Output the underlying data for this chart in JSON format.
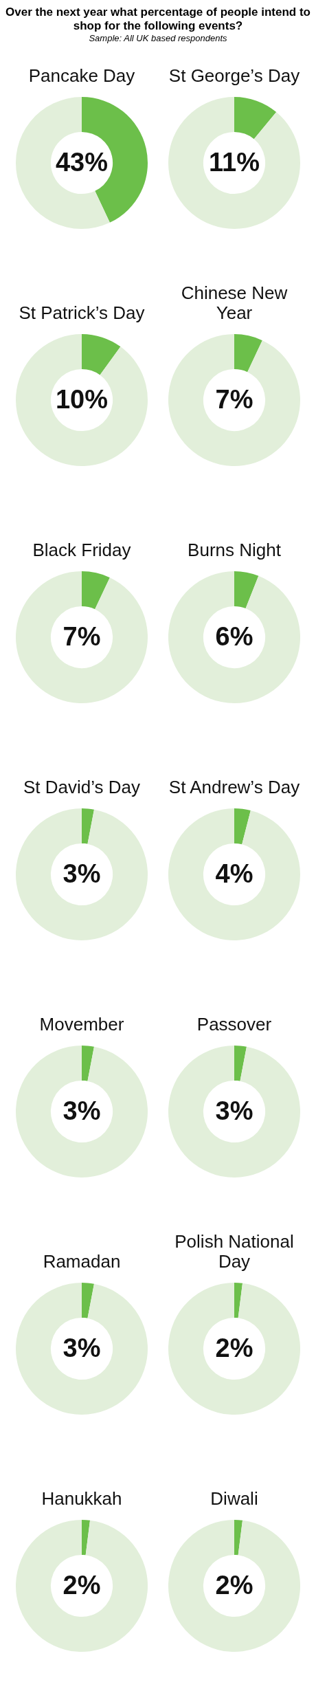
{
  "chart_data": [
    {
      "type": "other",
      "title": "Over the next year what percentage of people intend to shop for the following events?",
      "subtitle": "Sample: All UK based respondents"
    },
    {
      "type": "donut",
      "title": "Pancake Day",
      "categories": [
        null,
        null
      ],
      "values": [
        43,
        57
      ],
      "colors": [
        "#6cbf4a",
        "#e2efda"
      ],
      "value_labels": [
        "43%",
        null
      ]
    },
    {
      "type": "donut",
      "title": "St George’s Day",
      "categories": [
        null,
        null
      ],
      "values": [
        11,
        89
      ],
      "colors": [
        "#6cbf4a",
        "#e2efda"
      ],
      "value_labels": [
        "11%",
        null
      ]
    },
    {
      "type": "donut",
      "title": "St Patrick’s Day",
      "categories": [
        null,
        null
      ],
      "values": [
        10,
        90
      ],
      "colors": [
        "#6cbf4a",
        "#e2efda"
      ],
      "value_labels": [
        "10%",
        null
      ]
    },
    {
      "type": "donut",
      "title": "Chinese New Year",
      "categories": [
        null,
        null
      ],
      "values": [
        7,
        93
      ],
      "colors": [
        "#6cbf4a",
        "#e2efda"
      ],
      "value_labels": [
        "7%",
        null
      ]
    },
    {
      "type": "donut",
      "title": "Black Friday",
      "categories": [
        null,
        null
      ],
      "values": [
        7,
        93
      ],
      "colors": [
        "#6cbf4a",
        "#e2efda"
      ],
      "value_labels": [
        "7%",
        null
      ]
    },
    {
      "type": "donut",
      "title": "Burns Night",
      "categories": [
        null,
        null
      ],
      "values": [
        6,
        94
      ],
      "colors": [
        "#6cbf4a",
        "#e2efda"
      ],
      "value_labels": [
        "6%",
        null
      ]
    },
    {
      "type": "donut",
      "title": "St David’s Day",
      "categories": [
        null,
        null
      ],
      "values": [
        3,
        97
      ],
      "colors": [
        "#6cbf4a",
        "#e2efda"
      ],
      "value_labels": [
        "3%",
        null
      ]
    },
    {
      "type": "donut",
      "title": "St Andrew’s Day",
      "categories": [
        null,
        null
      ],
      "values": [
        4,
        96
      ],
      "colors": [
        "#6cbf4a",
        "#e2efda"
      ],
      "value_labels": [
        "4%",
        null
      ]
    },
    {
      "type": "donut",
      "title": "Movember",
      "categories": [
        null,
        null
      ],
      "values": [
        3,
        97
      ],
      "colors": [
        "#6cbf4a",
        "#e2efda"
      ],
      "value_labels": [
        "3%",
        null
      ]
    },
    {
      "type": "donut",
      "title": "Passover",
      "categories": [
        null,
        null
      ],
      "values": [
        3,
        97
      ],
      "colors": [
        "#6cbf4a",
        "#e2efda"
      ],
      "value_labels": [
        "3%",
        null
      ]
    },
    {
      "type": "donut",
      "title": "Ramadan",
      "categories": [
        null,
        null
      ],
      "values": [
        3,
        97
      ],
      "colors": [
        "#6cbf4a",
        "#e2efda"
      ],
      "value_labels": [
        "3%",
        null
      ]
    },
    {
      "type": "donut",
      "title": "Polish National Day",
      "categories": [
        null,
        null
      ],
      "values": [
        2,
        98
      ],
      "colors": [
        "#6cbf4a",
        "#e2efda"
      ],
      "value_labels": [
        "2%",
        null
      ]
    },
    {
      "type": "donut",
      "title": "Hanukkah",
      "categories": [
        null,
        null
      ],
      "values": [
        2,
        98
      ],
      "colors": [
        "#6cbf4a",
        "#e2efda"
      ],
      "value_labels": [
        "2%",
        null
      ]
    },
    {
      "type": "donut",
      "title": "Diwali",
      "categories": [
        null,
        null
      ],
      "values": [
        2,
        98
      ],
      "colors": [
        "#6cbf4a",
        "#e2efda"
      ],
      "value_labels": [
        "2%",
        null
      ]
    }
  ]
}
